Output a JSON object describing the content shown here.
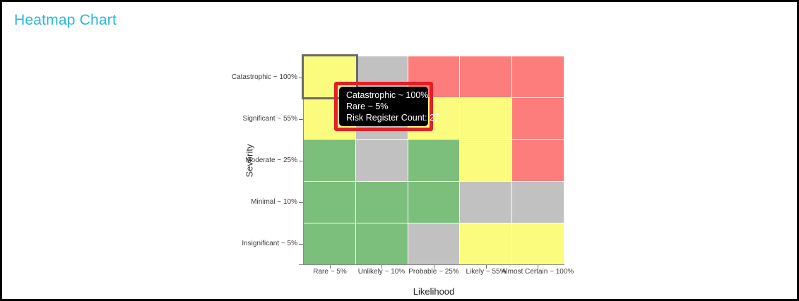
{
  "page": {
    "title": "Heatmap Chart",
    "title_color": "#29b7da",
    "border_color": "#000000"
  },
  "chart_data": {
    "type": "heatmap",
    "title": "Heatmap Chart",
    "xlabel": "Likelihood",
    "ylabel": "Severity",
    "x_categories": [
      "Rare ~ 5%",
      "Unlikely ~ 10%",
      "Probable ~ 25%",
      "Likely ~ 55%",
      "Almost Certain ~ 100%"
    ],
    "y_categories": [
      "Catastrophic ~ 100%",
      "Significant ~ 55%",
      "Moderate ~ 25%",
      "Minimal ~ 10%",
      "Insignificant ~ 5%"
    ],
    "cell_colors": [
      [
        "yellow",
        "gray",
        "red",
        "red",
        "red"
      ],
      [
        "yellow",
        "gray",
        "yellow",
        "yellow",
        "red"
      ],
      [
        "green",
        "gray",
        "green",
        "yellow",
        "red"
      ],
      [
        "green",
        "green",
        "green",
        "gray",
        "gray"
      ],
      [
        "green",
        "green",
        "gray",
        "yellow",
        "yellow"
      ]
    ],
    "palette": {
      "yellow": "#fbfb7e",
      "gray": "#c1c1c1",
      "green": "#7cbe7c",
      "red": "#fd7c7c"
    },
    "gridline_color": "#ffffff",
    "legend": "off",
    "selected_cell": {
      "row": 0,
      "col": 0,
      "outline_color": "#6a6a6a"
    }
  },
  "tooltip": {
    "lines": [
      "Catastrophic ~ 100%",
      "Rare ~ 5%",
      "Risk Register Count: 27"
    ],
    "severity": "Catastrophic ~ 100%",
    "likelihood": "Rare ~ 5%",
    "risk_register_count": 27,
    "background_color": "#000000",
    "text_color": "#ffffff",
    "highlight_border_color": "#e41e25"
  }
}
